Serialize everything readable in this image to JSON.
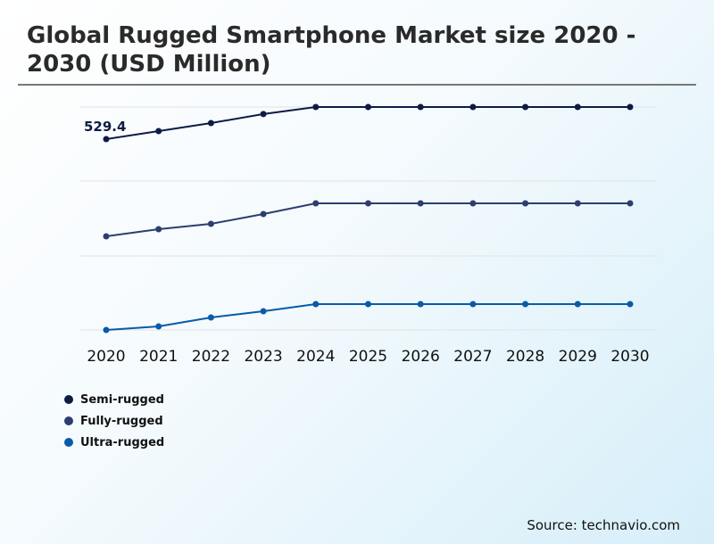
{
  "title": "Global Rugged Smartphone Market size 2020 - 2030 (USD Million)",
  "source": "Source: technavio.com",
  "chart_data": {
    "type": "line",
    "title": "Global Rugged Smartphone Market size 2020 - 2030 (USD Million)",
    "x": [
      "2020",
      "2021",
      "2022",
      "2023",
      "2024",
      "2025",
      "2026",
      "2027",
      "2028",
      "2029",
      "2030"
    ],
    "ylim": [
      0,
      618.5
    ],
    "grid": true,
    "legend_position": "bottom-left",
    "annotations": [
      {
        "series": "Semi-rugged",
        "x": "2020",
        "label": "529.4"
      }
    ],
    "series": [
      {
        "name": "Semi-rugged",
        "color": "#0d1b45",
        "values": [
          529.4,
          551.7,
          574,
          599,
          618.5,
          618.5,
          618.5,
          618.5,
          618.5,
          618.5,
          618.5
        ]
      },
      {
        "name": "Fully-rugged",
        "color": "#2c3e70",
        "values": [
          259.8,
          279.6,
          294.4,
          321.6,
          351.3,
          351.3,
          351.3,
          351.3,
          351.3,
          351.3,
          351.3
        ]
      },
      {
        "name": "Ultra-rugged",
        "color": "#0a5aa8",
        "values": [
          0,
          9.9,
          34.6,
          52,
          71.7,
          71.7,
          71.7,
          71.7,
          71.7,
          71.7,
          71.7
        ]
      }
    ]
  }
}
